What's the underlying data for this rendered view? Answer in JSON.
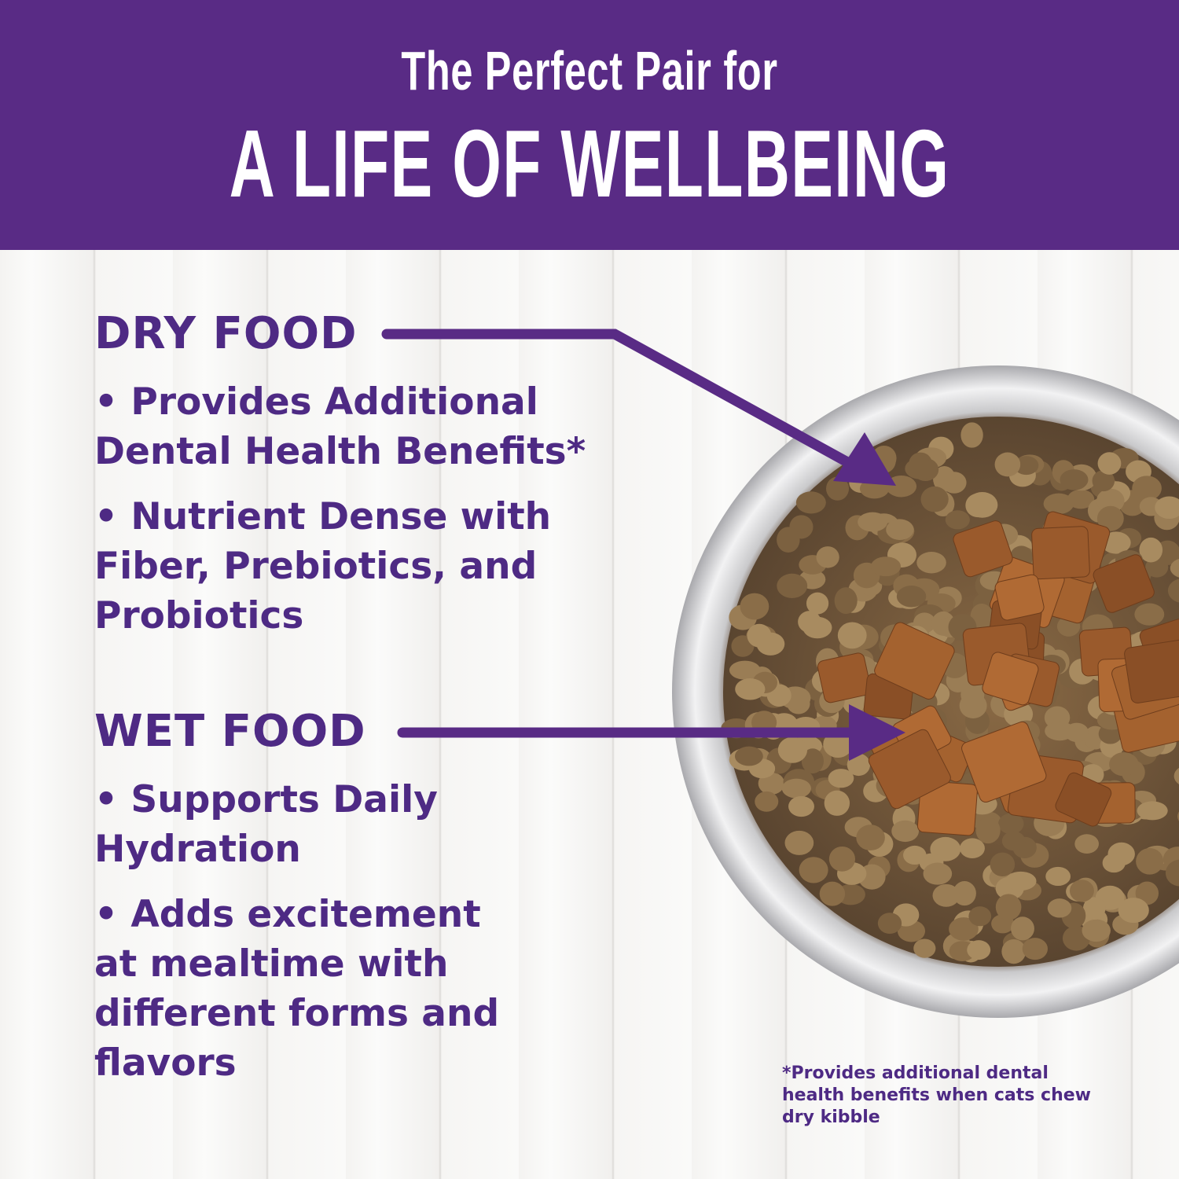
{
  "header": {
    "subtitle": "The Perfect Pair for",
    "title": "A LIFE OF WELLBEING",
    "color": "#592b85"
  },
  "dry": {
    "title": "DRY FOOD",
    "bullets": [
      "• Provides Additional Dental Health Benefits*",
      "• Nutrient Dense with Fiber, Prebiotics, and Probiotics"
    ]
  },
  "wet": {
    "title": "WET FOOD",
    "bullets": [
      "• Supports Daily Hydration",
      "• Adds excitement at mealtime with different forms and flavors"
    ]
  },
  "footnote": "*Provides additional dental health benefits when cats chew dry kibble",
  "colors": {
    "text": "#4e2a84"
  }
}
